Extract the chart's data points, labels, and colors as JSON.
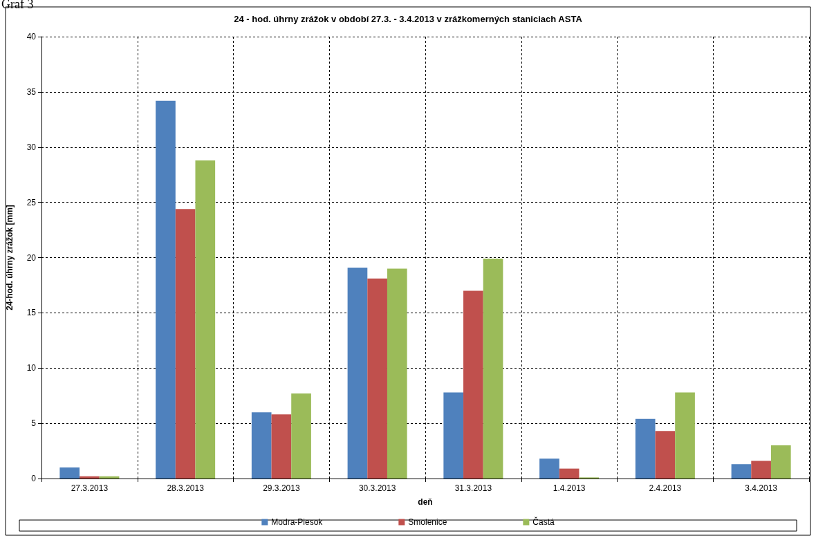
{
  "chart_data": {
    "type": "bar",
    "title": "24 - hod. úhrny zrážok v období 27.3. - 3.4.2013 v zrážkomerných staniciach ASTA",
    "xlabel": "deň",
    "ylabel": "24-hod. úhrny zrážok [mm]",
    "annotations": [
      "Graf 3"
    ],
    "categories": [
      "27.3.2013",
      "28.3.2013",
      "29.3.2013",
      "30.3.2013",
      "31.3.2013",
      "1.4.2013",
      "2.4.2013",
      "3.4.2013"
    ],
    "series": [
      {
        "name": "Modra-Piesok",
        "color": "#4f81bd",
        "values": [
          1.0,
          34.2,
          6.0,
          19.1,
          7.8,
          1.8,
          5.4,
          1.3
        ]
      },
      {
        "name": "Smolenice",
        "color": "#c0504d",
        "values": [
          0.2,
          24.4,
          5.8,
          18.1,
          17.0,
          0.9,
          4.3,
          1.6
        ]
      },
      {
        "name": "Častá",
        "color": "#9bbb59",
        "values": [
          0.2,
          28.8,
          7.7,
          19.0,
          19.9,
          0.1,
          7.8,
          3.0
        ]
      }
    ],
    "ylim": [
      0,
      40
    ],
    "yticks": [
      0,
      5,
      10,
      15,
      20,
      25,
      30,
      35,
      40
    ],
    "grid": true,
    "legend": "bottom"
  }
}
